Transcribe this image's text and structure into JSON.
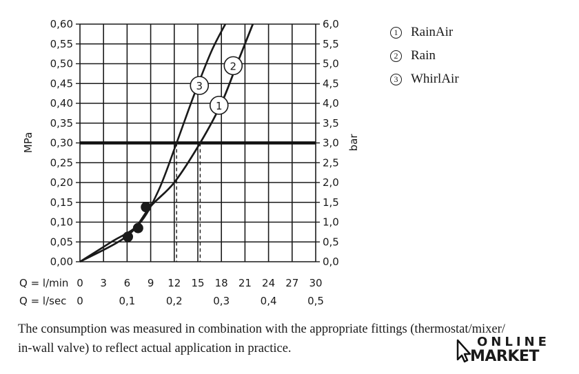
{
  "chart_data": {
    "type": "line",
    "x_primary": {
      "label": "Q = l/min",
      "ticks": [
        0,
        3,
        6,
        9,
        12,
        15,
        18,
        21,
        24,
        27,
        30
      ],
      "tick_labels": [
        "0",
        "3",
        "6",
        "9",
        "12",
        "15",
        "18",
        "21",
        "24",
        "27",
        "30"
      ],
      "range": [
        0,
        30
      ]
    },
    "x_secondary": {
      "label": "Q = l/sec",
      "ticks": [
        0,
        0.1,
        0.2,
        0.3,
        0.4,
        0.5
      ],
      "tick_labels": [
        "0",
        "0,1",
        "0,2",
        "0,3",
        "0,4",
        "0,5"
      ]
    },
    "y_left": {
      "label": "MPa",
      "range": [
        0,
        0.6
      ],
      "ticks": [
        0,
        0.05,
        0.1,
        0.15,
        0.2,
        0.25,
        0.3,
        0.35,
        0.4,
        0.45,
        0.5,
        0.55,
        0.6
      ],
      "tick_labels": [
        "0,00",
        "0,05",
        "0,10",
        "0,15",
        "0,20",
        "0,25",
        "0,30",
        "0,35",
        "0,40",
        "0,45",
        "0,50",
        "0,55",
        "0,60"
      ]
    },
    "y_right": {
      "label": "bar",
      "range": [
        0,
        6
      ],
      "tick_labels": [
        "0,0",
        "0,5",
        "1,0",
        "1,5",
        "2,0",
        "2,5",
        "3,0",
        "3,5",
        "4,0",
        "4,5",
        "5,0",
        "5,5",
        "6,0"
      ]
    },
    "grid": true,
    "reference_line": {
      "y": 0.3
    },
    "series": [
      {
        "name": "1",
        "x": [
          0,
          6,
          9,
          12,
          15.3,
          18,
          20,
          22
        ],
        "y": [
          0,
          0.065,
          0.14,
          0.2,
          0.3,
          0.4,
          0.5,
          0.6
        ]
      },
      {
        "name": "2",
        "x": [
          0,
          6,
          9,
          12,
          15.3,
          18,
          20,
          22
        ],
        "y": [
          0,
          0.065,
          0.14,
          0.2,
          0.3,
          0.4,
          0.5,
          0.6
        ]
      },
      {
        "name": "3",
        "x": [
          0,
          4,
          7.5,
          10,
          12.3,
          14.5,
          16.7,
          18.5
        ],
        "y": [
          0,
          0.05,
          0.095,
          0.18,
          0.3,
          0.42,
          0.53,
          0.6
        ]
      }
    ],
    "curve_labels": [
      {
        "text": "1",
        "x": 17.7,
        "y": 0.395
      },
      {
        "text": "2",
        "x": 19.5,
        "y": 0.495
      },
      {
        "text": "3",
        "x": 15.2,
        "y": 0.445
      }
    ],
    "markers": [
      {
        "x": 6.1,
        "y": 0.063
      },
      {
        "x": 7.4,
        "y": 0.085
      },
      {
        "x": 8.4,
        "y": 0.138
      }
    ],
    "dashed_drops": [
      {
        "x": 12.3,
        "y": 0.3
      },
      {
        "x": 15.3,
        "y": 0.3
      }
    ]
  },
  "legend": [
    {
      "marker": "1",
      "label": "RainAir"
    },
    {
      "marker": "2",
      "label": "Rain"
    },
    {
      "marker": "3",
      "label": "WhirlAir"
    }
  ],
  "caption": {
    "line1": "The consumption was measured in combination with the appropriate fittings (thermostat/mixer/",
    "line2": "in-wall valve) to reflect actual application in practice."
  },
  "logo": {
    "top": "ONLINE",
    "bottom": "MARKET"
  }
}
